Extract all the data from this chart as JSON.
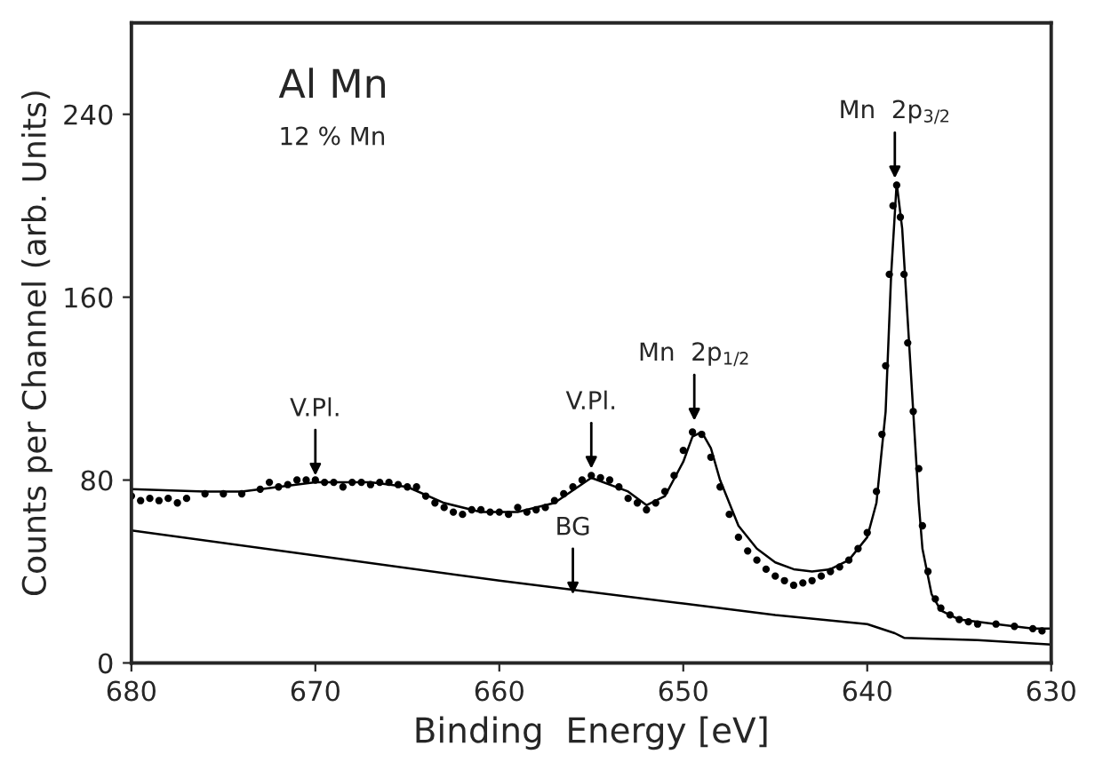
{
  "chart_data": {
    "type": "scatter",
    "xlabel": "Binding  Energy [eV]",
    "ylabel": "Counts per Channel (arb. Units)",
    "xlim": [
      680,
      630
    ],
    "xticks": [
      680,
      670,
      660,
      650,
      640,
      630
    ],
    "ylim": [
      0,
      280
    ],
    "yticks": [
      0,
      80,
      160,
      240
    ],
    "grid": false,
    "legend": false,
    "annotations": [
      "Al Mn",
      "12 % Mn",
      {
        "text": "V.Pl.",
        "x": 670,
        "y": 82
      },
      {
        "text": "V.Pl.",
        "x": 655,
        "y": 85
      },
      {
        "text": "Mn  2p$_{1/2}$",
        "x": 649.4,
        "y": 106
      },
      {
        "text": "Mn  2p$_{3/2}$",
        "x": 638.5,
        "y": 212
      },
      {
        "text": "BG",
        "x": 656,
        "y": 30
      }
    ],
    "series": [
      {
        "color": "#000000",
        "marker": "circle",
        "x": [
          680,
          679.5,
          679,
          678.5,
          678,
          677.5,
          677,
          676,
          675,
          674,
          673,
          672.5,
          672,
          671.5,
          671,
          670.5,
          670,
          669.5,
          669,
          668.5,
          668,
          667.5,
          667,
          666.5,
          666,
          665.5,
          665,
          664.5,
          664,
          663.5,
          663,
          662.5,
          662,
          661.5,
          661,
          660.5,
          660,
          659.5,
          659,
          658.5,
          658,
          657.5,
          657,
          656.5,
          656,
          655.5,
          655,
          654.5,
          654,
          653.5,
          653,
          652.5,
          652,
          651.5,
          651,
          650.5,
          650,
          649.5,
          649,
          648.5,
          648,
          647.5,
          647,
          646.5,
          646,
          645.5,
          645,
          644.5,
          644,
          643.5,
          643,
          642.5,
          642,
          641.5,
          641,
          640.5,
          640,
          639.5,
          639.2,
          639,
          638.8,
          638.6,
          638.4,
          638.2,
          638,
          637.8,
          637.5,
          637.2,
          637,
          636.7,
          636.3,
          636,
          635.5,
          635,
          634.5,
          634,
          633,
          632,
          631,
          630.5
        ],
        "values": [
          73,
          71,
          72,
          71,
          72,
          70,
          72,
          74,
          74,
          74,
          76,
          79,
          77,
          78,
          80,
          80,
          80,
          79,
          79,
          77,
          79,
          79,
          78,
          79,
          79,
          78,
          77,
          77,
          73,
          70,
          68,
          66,
          65,
          67,
          67,
          66,
          66,
          65,
          68,
          66,
          67,
          68,
          71,
          74,
          77,
          80,
          82,
          81,
          80,
          77,
          72,
          70,
          67,
          70,
          75,
          82,
          93,
          101,
          100,
          90,
          77,
          65,
          55,
          49,
          45,
          41,
          38,
          36,
          34,
          35,
          36,
          38,
          40,
          42,
          45,
          50,
          57,
          75,
          100,
          130,
          170,
          200,
          209,
          195,
          170,
          140,
          110,
          85,
          60,
          40,
          28,
          24,
          21,
          19,
          18,
          17,
          17,
          16,
          15,
          14
        ]
      },
      {
        "type": "line",
        "color": "#000000",
        "line_style": "solid",
        "x": [
          680,
          676,
          674,
          672,
          670,
          667,
          665,
          663,
          661,
          659,
          657,
          655,
          653,
          652,
          651,
          650,
          649.5,
          649,
          648.5,
          648,
          647,
          646,
          645,
          644,
          643,
          642,
          641,
          640,
          639.5,
          639,
          638.7,
          638.4,
          638.1,
          637.8,
          637.5,
          637.2,
          637,
          636.5,
          636,
          635,
          633,
          631,
          630
        ],
        "values": [
          76,
          75,
          75,
          77,
          79,
          79,
          77,
          70,
          66,
          66,
          70,
          81,
          75,
          69,
          73,
          88,
          99,
          101,
          94,
          80,
          60,
          50,
          44,
          41,
          40,
          41,
          45,
          55,
          70,
          110,
          170,
          210,
          190,
          150,
          110,
          70,
          50,
          30,
          23,
          19,
          17,
          15,
          15
        ]
      },
      {
        "type": "line",
        "color": "#000000",
        "line_style": "solid",
        "x": [
          680,
          670,
          660,
          650,
          645,
          640,
          638.5,
          638,
          634,
          630
        ],
        "values": [
          58,
          47,
          36,
          26,
          21,
          17,
          13,
          11,
          10,
          8
        ]
      }
    ]
  }
}
